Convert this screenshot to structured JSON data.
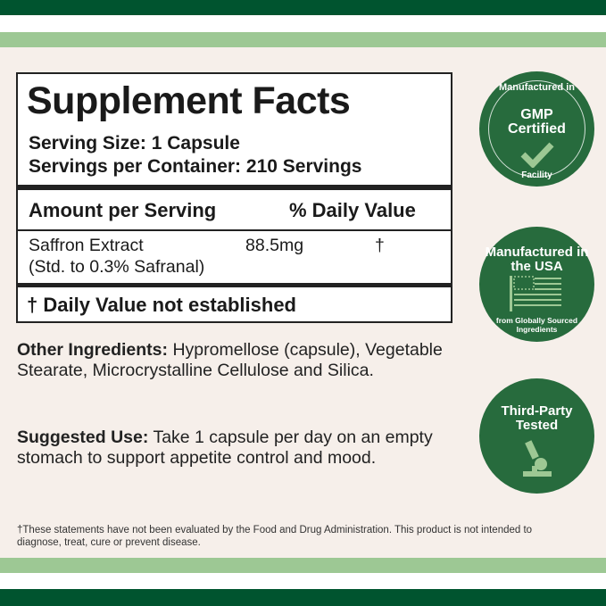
{
  "colors": {
    "dark_green": "#00542f",
    "light_green": "#9dc894",
    "badge_green": "#276b3d",
    "background": "#f6efea"
  },
  "facts": {
    "title": "Supplement Facts",
    "serving_size": "Serving Size: 1 Capsule",
    "servings_per_container": "Servings per Container: 210 Servings",
    "amount_header": "Amount per Serving",
    "dv_header": "% Daily Value",
    "ingredient": {
      "name": "Saffron Extract",
      "amount": "88.5mg",
      "dv": "†",
      "note": "(Std. to 0.3% Safranal)"
    },
    "dv_note": "† Daily Value not established"
  },
  "other_ingredients": {
    "label": "Other Ingredients:",
    "text": " Hypromellose (capsule), Vegetable Stearate, Microcrystalline Cellulose and Silica."
  },
  "suggested_use": {
    "label": "Suggested Use:",
    "text": " Take 1 capsule per day on an empty stomach to support appetite control and mood."
  },
  "disclaimer": "†These statements have not been evaluated by the Food and Drug Administration. This product is not intended to diagnose, treat, cure or prevent disease.",
  "badges": [
    {
      "top": "Manufactured in",
      "title": "GMP Certified",
      "bottom": "Facility",
      "icon": "checkmark-icon"
    },
    {
      "title": "Manufactured in the USA",
      "subtitle": "from Globally Sourced Ingredients",
      "icon": "us-flag-icon"
    },
    {
      "title": "Third-Party Tested",
      "icon": "microscope-icon"
    }
  ]
}
